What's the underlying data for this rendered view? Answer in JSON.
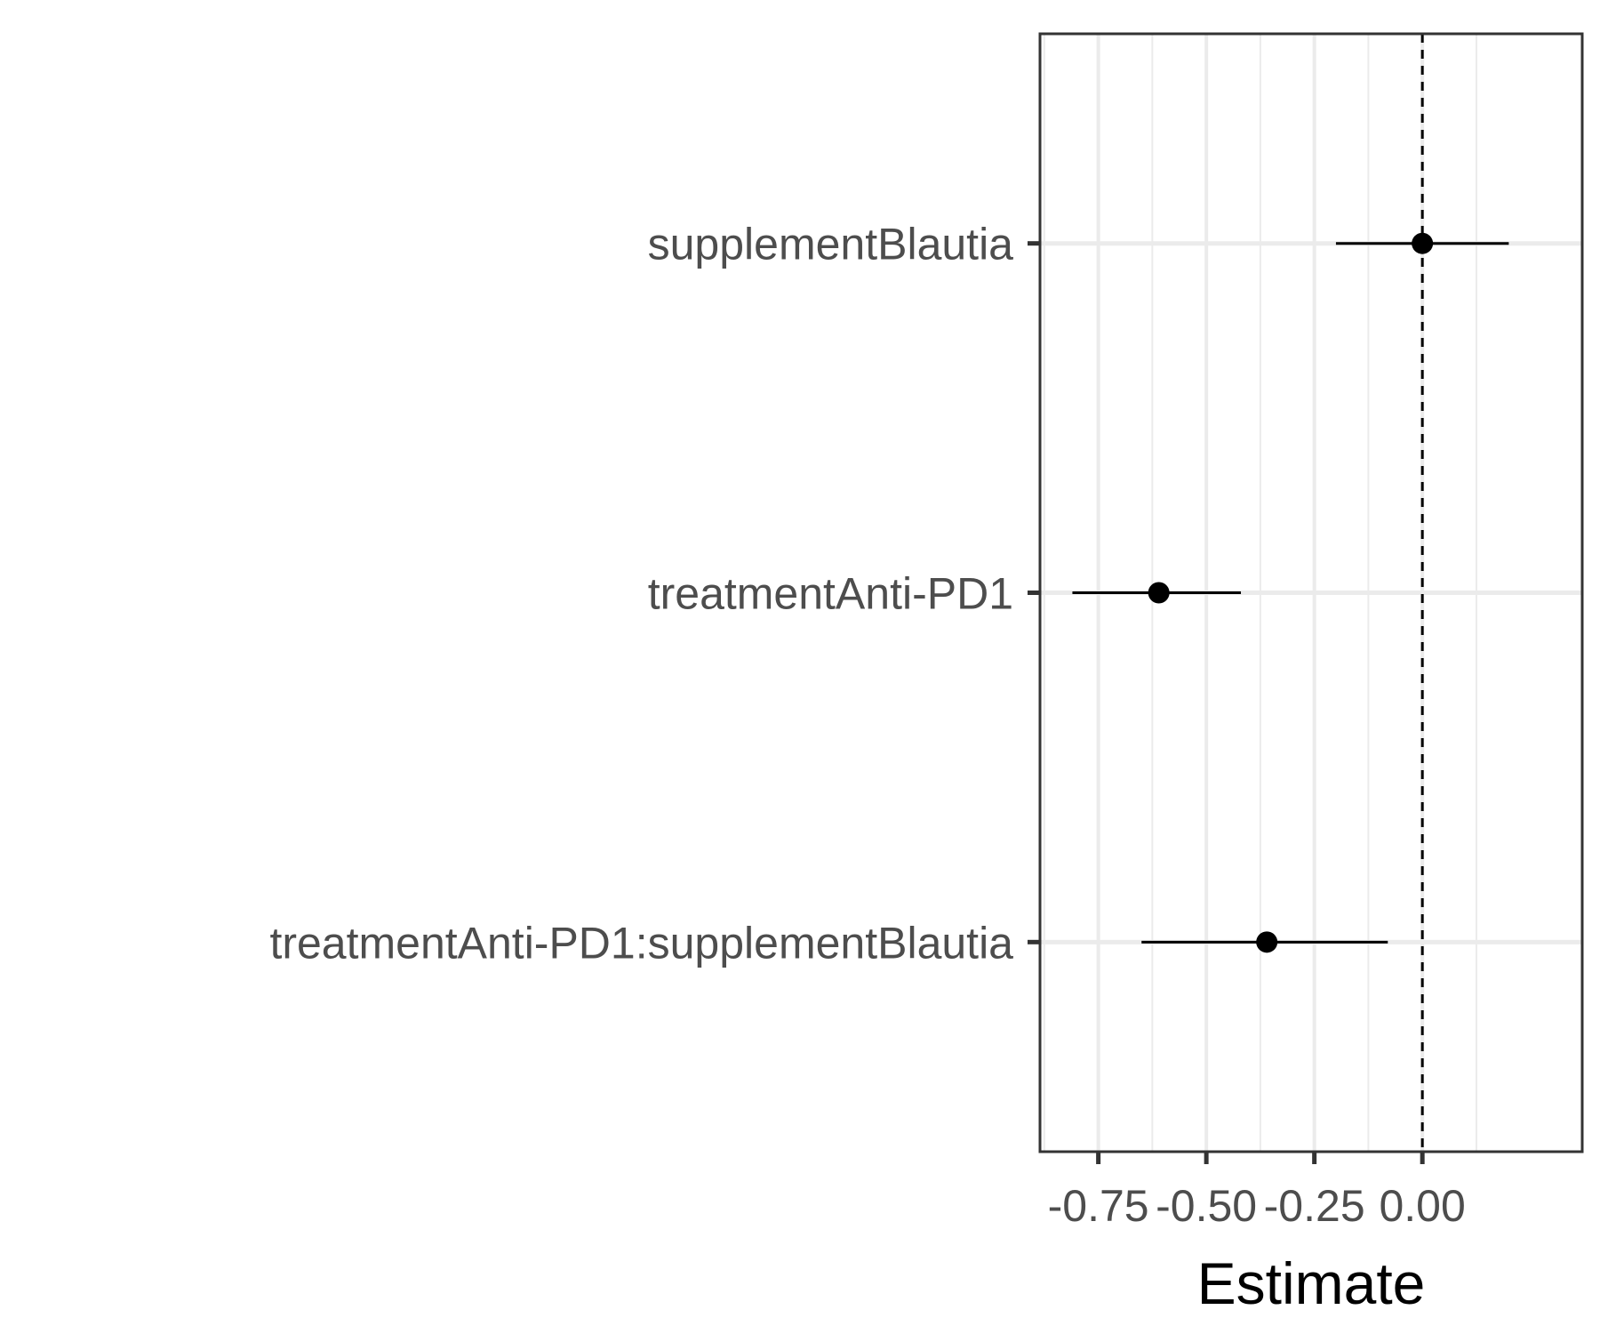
{
  "chart_data": {
    "type": "scatter",
    "subtype": "coefficient-plot",
    "title": "",
    "xlabel": "Estimate",
    "ylabel": "",
    "xlim": [
      -0.885,
      0.37
    ],
    "xticks": [
      -0.75,
      -0.5,
      -0.25,
      0.0
    ],
    "xtick_labels": [
      "-0.75",
      "-0.50",
      "-0.25",
      "0.00"
    ],
    "reference_line": {
      "x": 0.0,
      "style": "dashed"
    },
    "grid": true,
    "terms": [
      {
        "label": "supplementBlautia",
        "estimate": 0.0,
        "lower": -0.2,
        "upper": 0.2
      },
      {
        "label": "treatmentAnti-PD1",
        "estimate": -0.61,
        "lower": -0.81,
        "upper": -0.42
      },
      {
        "label": "treatmentAnti-PD1:supplementBlautia",
        "estimate": -0.36,
        "lower": -0.65,
        "upper": -0.08
      }
    ]
  }
}
